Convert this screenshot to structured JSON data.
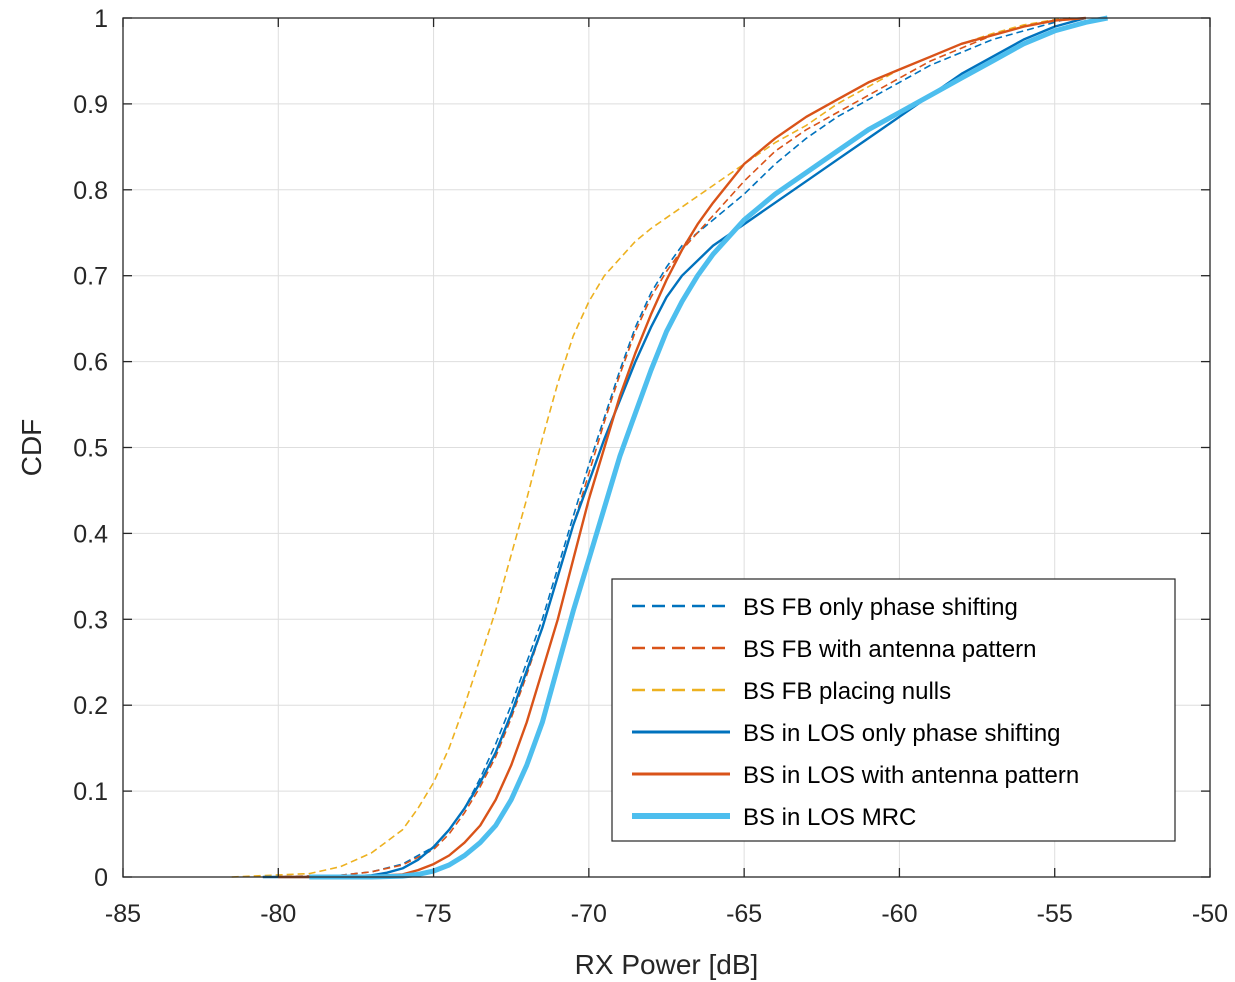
{
  "chart_data": {
    "type": "line",
    "xlabel": "RX Power [dB]",
    "ylabel": "CDF",
    "xlim": [
      -85,
      -50
    ],
    "ylim": [
      0,
      1
    ],
    "xticks": [
      -85,
      -80,
      -75,
      -70,
      -65,
      -60,
      -55,
      -50
    ],
    "yticks": [
      0,
      0.1,
      0.2,
      0.3,
      0.4,
      0.5,
      0.6,
      0.7,
      0.8,
      0.9,
      1
    ],
    "grid": true,
    "legend_position": "bottom-right",
    "series": [
      {
        "name": "BS FB only phase shifting",
        "color": "#0072BD",
        "style": "dashed",
        "x": [
          -80.5,
          -78,
          -77,
          -76,
          -75,
          -74.5,
          -74,
          -73.5,
          -73,
          -72.5,
          -72,
          -71.5,
          -71,
          -70.5,
          -70,
          -69.5,
          -69,
          -68.5,
          -68,
          -67.5,
          -67,
          -66,
          -65,
          -64,
          -63,
          -62,
          -61,
          -60,
          -59,
          -58,
          -57,
          -56,
          -55,
          -54.5
        ],
        "y": [
          0,
          0.002,
          0.006,
          0.015,
          0.035,
          0.055,
          0.08,
          0.115,
          0.155,
          0.2,
          0.25,
          0.3,
          0.36,
          0.42,
          0.48,
          0.535,
          0.59,
          0.64,
          0.68,
          0.71,
          0.735,
          0.765,
          0.795,
          0.83,
          0.86,
          0.885,
          0.905,
          0.925,
          0.945,
          0.96,
          0.975,
          0.985,
          0.995,
          1.0
        ]
      },
      {
        "name": "BS FB with antenna pattern",
        "color": "#D95319",
        "style": "dashed",
        "x": [
          -80.5,
          -78,
          -77,
          -76,
          -75,
          -74.5,
          -74,
          -73.5,
          -73,
          -72.5,
          -72,
          -71.5,
          -71,
          -70.5,
          -70,
          -69.5,
          -69,
          -68.5,
          -68,
          -67.5,
          -67,
          -66,
          -65,
          -64,
          -63,
          -62,
          -61,
          -60,
          -59,
          -58,
          -57,
          -56,
          -55,
          -54.5
        ],
        "y": [
          0,
          0.002,
          0.006,
          0.014,
          0.032,
          0.05,
          0.075,
          0.105,
          0.14,
          0.185,
          0.235,
          0.29,
          0.35,
          0.41,
          0.47,
          0.53,
          0.585,
          0.635,
          0.675,
          0.705,
          0.73,
          0.77,
          0.81,
          0.845,
          0.87,
          0.89,
          0.91,
          0.93,
          0.95,
          0.965,
          0.98,
          0.99,
          0.997,
          1.0
        ]
      },
      {
        "name": "BS FB placing nulls",
        "color": "#EDB120",
        "style": "dashed",
        "x": [
          -81.5,
          -79,
          -78,
          -77,
          -76,
          -75.5,
          -75,
          -74.5,
          -74,
          -73.5,
          -73,
          -72.5,
          -72,
          -71.5,
          -71,
          -70.5,
          -70,
          -69.5,
          -69,
          -68.5,
          -68,
          -67,
          -66,
          -65,
          -64,
          -63,
          -62,
          -61,
          -60,
          -59,
          -58,
          -57,
          -56,
          -55,
          -54.5
        ],
        "y": [
          0,
          0.004,
          0.012,
          0.028,
          0.055,
          0.08,
          0.11,
          0.15,
          0.2,
          0.255,
          0.31,
          0.375,
          0.44,
          0.51,
          0.575,
          0.63,
          0.67,
          0.7,
          0.72,
          0.74,
          0.755,
          0.78,
          0.805,
          0.83,
          0.855,
          0.875,
          0.9,
          0.92,
          0.94,
          0.955,
          0.97,
          0.982,
          0.992,
          0.998,
          1.0
        ]
      },
      {
        "name": "BS in LOS only phase shifting",
        "color": "#0072BD",
        "style": "solid",
        "x": [
          -80.5,
          -78,
          -77,
          -76.5,
          -76,
          -75.5,
          -75,
          -74.5,
          -74,
          -73.5,
          -73,
          -72.5,
          -72,
          -71.5,
          -71,
          -70.5,
          -70,
          -69.5,
          -69,
          -68.5,
          -68,
          -67.5,
          -67,
          -66,
          -65,
          -64,
          -63,
          -62,
          -61,
          -60,
          -59,
          -58,
          -57,
          -56,
          -55,
          -54
        ],
        "y": [
          0,
          0.0,
          0.002,
          0.005,
          0.01,
          0.02,
          0.035,
          0.055,
          0.08,
          0.11,
          0.145,
          0.19,
          0.24,
          0.29,
          0.35,
          0.41,
          0.46,
          0.51,
          0.555,
          0.6,
          0.64,
          0.675,
          0.7,
          0.735,
          0.76,
          0.785,
          0.81,
          0.835,
          0.86,
          0.885,
          0.91,
          0.935,
          0.955,
          0.975,
          0.99,
          1.0
        ]
      },
      {
        "name": "BS in LOS with antenna pattern",
        "color": "#D95319",
        "style": "solid",
        "x": [
          -80,
          -78,
          -77,
          -76,
          -75.5,
          -75,
          -74.5,
          -74,
          -73.5,
          -73,
          -72.5,
          -72,
          -71.5,
          -71,
          -70.5,
          -70,
          -69.5,
          -69,
          -68.5,
          -68,
          -67.5,
          -67,
          -66.5,
          -66,
          -65,
          -64,
          -63,
          -62,
          -61,
          -60,
          -59,
          -58,
          -57,
          -56,
          -55,
          -54
        ],
        "y": [
          0,
          0.0,
          0.001,
          0.003,
          0.008,
          0.015,
          0.025,
          0.04,
          0.06,
          0.09,
          0.13,
          0.18,
          0.24,
          0.3,
          0.37,
          0.44,
          0.5,
          0.56,
          0.61,
          0.655,
          0.695,
          0.73,
          0.76,
          0.785,
          0.83,
          0.86,
          0.885,
          0.905,
          0.925,
          0.94,
          0.955,
          0.97,
          0.98,
          0.99,
          0.997,
          1.0
        ]
      },
      {
        "name": "BS in LOS MRC",
        "color": "#4DBEEE",
        "style": "solid-thick",
        "x": [
          -79,
          -77,
          -76,
          -75.5,
          -75,
          -74.5,
          -74,
          -73.5,
          -73,
          -72.5,
          -72,
          -71.5,
          -71,
          -70.5,
          -70,
          -69.5,
          -69,
          -68.5,
          -68,
          -67.5,
          -67,
          -66.5,
          -66,
          -65,
          -64,
          -63,
          -62,
          -61,
          -60,
          -59,
          -58,
          -57,
          -56,
          -55,
          -54,
          -53.3
        ],
        "y": [
          0,
          0.0,
          0.001,
          0.003,
          0.007,
          0.014,
          0.025,
          0.04,
          0.06,
          0.09,
          0.13,
          0.18,
          0.245,
          0.31,
          0.37,
          0.43,
          0.49,
          0.54,
          0.59,
          0.635,
          0.67,
          0.7,
          0.725,
          0.765,
          0.795,
          0.82,
          0.845,
          0.87,
          0.89,
          0.91,
          0.93,
          0.95,
          0.97,
          0.985,
          0.995,
          1.0
        ]
      }
    ]
  }
}
